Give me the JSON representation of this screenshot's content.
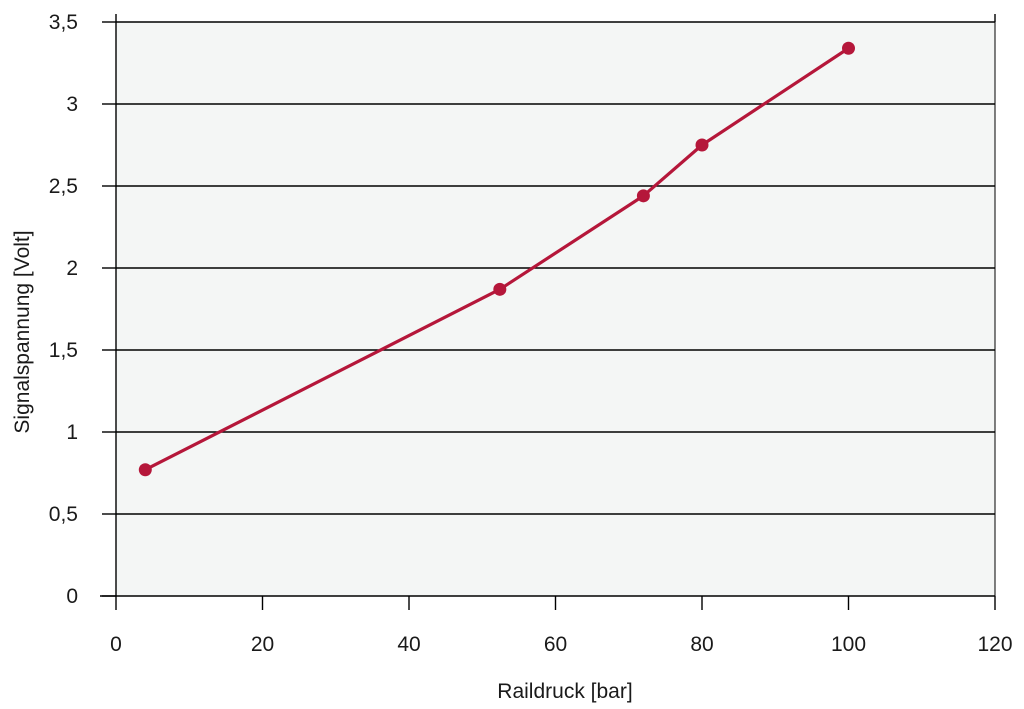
{
  "chart_data": {
    "type": "line",
    "title": "",
    "xlabel": "Raildruck [bar]",
    "ylabel": "Signalspannung [Volt]",
    "xlim": [
      0,
      120
    ],
    "ylim": [
      0,
      3.5
    ],
    "xticks": [
      0,
      20,
      40,
      60,
      80,
      100,
      120
    ],
    "yticks": [
      0,
      0.5,
      1,
      1.5,
      2,
      2.5,
      3,
      3.5
    ],
    "xtick_labels": [
      "0",
      "20",
      "40",
      "60",
      "80",
      "100",
      "120"
    ],
    "ytick_labels": [
      "0",
      "0,5",
      "1",
      "1,5",
      "2",
      "2,5",
      "3",
      "3,5"
    ],
    "grid": "horizontal",
    "series": [
      {
        "x": [
          4,
          52.4,
          72,
          80,
          100
        ],
        "y": [
          0.77,
          1.87,
          2.44,
          2.75,
          3.34
        ],
        "color": "#b5173a"
      }
    ],
    "colors": {
      "plot_background": "#f4f6f5",
      "grid": "#000000",
      "line": "#b5173a"
    }
  }
}
